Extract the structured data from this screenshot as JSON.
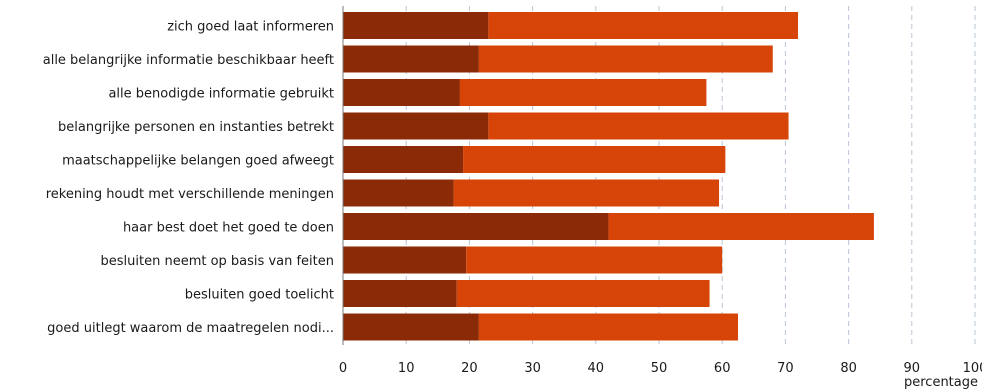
{
  "chart_data": {
    "type": "bar",
    "orientation": "horizontal",
    "stacked": true,
    "categories": [
      "zich goed laat informeren",
      "alle belangrijke informatie beschikbaar heeft",
      "alle benodigde informatie gebruikt",
      "belangrijke personen en instanties betrekt",
      "maatschappelijke belangen goed afweegt",
      "rekening houdt met verschillende meningen",
      "haar best doet het goed te doen",
      "besluiten neemt op basis van feiten",
      "besluiten goed toelicht",
      "goed uitlegt waarom de maatregelen nodi..."
    ],
    "series": [
      {
        "color": "#8b2a07",
        "values": [
          23,
          21.5,
          18.5,
          23,
          19,
          17.5,
          42,
          19.5,
          18,
          21.5
        ]
      },
      {
        "color": "#d64407",
        "values": [
          49,
          46.5,
          39,
          47.5,
          41.5,
          42,
          42,
          40.5,
          40,
          41
        ]
      }
    ],
    "xlabel": "percentage",
    "xlim": [
      0,
      100
    ],
    "xticks": [
      0,
      10,
      20,
      30,
      40,
      50,
      60,
      70,
      80,
      90,
      100
    ],
    "grid": true
  }
}
